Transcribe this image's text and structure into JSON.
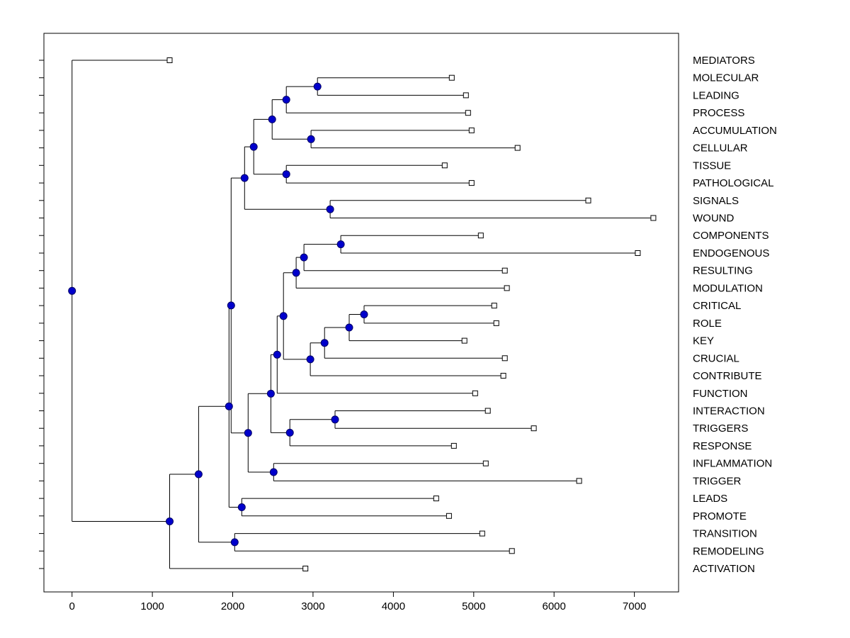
{
  "figure": {
    "background": "#ffffff",
    "title": ""
  },
  "chart_data": {
    "type": "tree",
    "subtype": "phylogenetic-dendrogram",
    "orientation": "horizontal, leaves on right",
    "title": "",
    "xlabel": "",
    "ylabel": "",
    "x_ticks": [
      0,
      1000,
      2000,
      3000,
      4000,
      5000,
      6000,
      7000
    ],
    "x_range": [
      -350,
      7550
    ],
    "grid": false,
    "colors": {
      "branch": "#000000",
      "node_fill": "#0000CC",
      "node_edge": "#000066",
      "leaf_fill": "#FFFFFF",
      "leaf_edge": "#000000",
      "text": "#000000",
      "axis": "#000000"
    },
    "leaves": [
      {
        "id": "L0",
        "label": "MEDIATORS",
        "value": 1215
      },
      {
        "id": "L1",
        "label": "MOLECULAR",
        "value": 4727
      },
      {
        "id": "L2",
        "label": "LEADING",
        "value": 4903
      },
      {
        "id": "L3",
        "label": "PROCESS",
        "value": 4930
      },
      {
        "id": "L4",
        "label": "ACCUMULATION",
        "value": 4974
      },
      {
        "id": "L5",
        "label": "CELLULAR",
        "value": 5546
      },
      {
        "id": "L6",
        "label": "TISSUE",
        "value": 4639
      },
      {
        "id": "L7",
        "label": "PATHOLOGICAL",
        "value": 4974
      },
      {
        "id": "L8",
        "label": "SIGNALS",
        "value": 6426
      },
      {
        "id": "L9",
        "label": "WOUND",
        "value": 7236
      },
      {
        "id": "L10",
        "label": "COMPONENTS",
        "value": 5088
      },
      {
        "id": "L11",
        "label": "ENDOGENOUS",
        "value": 7042
      },
      {
        "id": "L12",
        "label": "RESULTING",
        "value": 5387
      },
      {
        "id": "L13",
        "label": "MODULATION",
        "value": 5413
      },
      {
        "id": "L14",
        "label": "CRITICAL",
        "value": 5255
      },
      {
        "id": "L15",
        "label": "ROLE",
        "value": 5281
      },
      {
        "id": "L16",
        "label": "KEY",
        "value": 4885
      },
      {
        "id": "L17",
        "label": "CRUCIAL",
        "value": 5387
      },
      {
        "id": "L18",
        "label": "CONTRIBUTE",
        "value": 5369
      },
      {
        "id": "L19",
        "label": "FUNCTION",
        "value": 5018
      },
      {
        "id": "L20",
        "label": "INTERACTION",
        "value": 5176
      },
      {
        "id": "L21",
        "label": "TRIGGERS",
        "value": 5748
      },
      {
        "id": "L22",
        "label": "RESPONSE",
        "value": 4753
      },
      {
        "id": "L23",
        "label": "INFLAMMATION",
        "value": 5150
      },
      {
        "id": "L24",
        "label": "TRIGGER",
        "value": 6312
      },
      {
        "id": "L25",
        "label": "LEADS",
        "value": 4533
      },
      {
        "id": "L26",
        "label": "PROMOTE",
        "value": 4692
      },
      {
        "id": "L27",
        "label": "TRANSITION",
        "value": 5106
      },
      {
        "id": "L28",
        "label": "REMODELING",
        "value": 5475
      },
      {
        "id": "L29",
        "label": "ACTIVATION",
        "value": 2905
      }
    ],
    "nodes": [
      {
        "id": "n1",
        "children": [
          "L1",
          "L2"
        ],
        "value": 3055
      },
      {
        "id": "n2",
        "children": [
          "n1",
          "L3"
        ],
        "value": 2667
      },
      {
        "id": "n3",
        "children": [
          "L4",
          "L5"
        ],
        "value": 2975
      },
      {
        "id": "n4",
        "children": [
          "n2",
          "n3"
        ],
        "value": 2491
      },
      {
        "id": "n5",
        "children": [
          "L6",
          "L7"
        ],
        "value": 2667
      },
      {
        "id": "n6",
        "children": [
          "n4",
          "n5"
        ],
        "value": 2262
      },
      {
        "id": "n7",
        "children": [
          "L8",
          "L9"
        ],
        "value": 3213
      },
      {
        "id": "n8",
        "children": [
          "n6",
          "n7"
        ],
        "value": 2148
      },
      {
        "id": "n9",
        "children": [
          "L10",
          "L11"
        ],
        "value": 3345
      },
      {
        "id": "n10",
        "children": [
          "n9",
          "L12"
        ],
        "value": 2887
      },
      {
        "id": "n11",
        "children": [
          "n10",
          "L13"
        ],
        "value": 2790
      },
      {
        "id": "n12",
        "children": [
          "L14",
          "L15"
        ],
        "value": 3635
      },
      {
        "id": "n13",
        "children": [
          "n12",
          "L16"
        ],
        "value": 3450
      },
      {
        "id": "n14",
        "children": [
          "n13",
          "L17"
        ],
        "value": 3143
      },
      {
        "id": "n15",
        "children": [
          "n14",
          "L18"
        ],
        "value": 2966
      },
      {
        "id": "n16",
        "children": [
          "n11",
          "n15"
        ],
        "value": 2632
      },
      {
        "id": "n17",
        "children": [
          "n16",
          "L19"
        ],
        "value": 2553
      },
      {
        "id": "n18",
        "children": [
          "L20",
          "L21"
        ],
        "value": 3274
      },
      {
        "id": "n19",
        "children": [
          "n18",
          "L22"
        ],
        "value": 2711
      },
      {
        "id": "n20",
        "children": [
          "n17",
          "n19"
        ],
        "value": 2475
      },
      {
        "id": "n21",
        "children": [
          "L23",
          "L24"
        ],
        "value": 2509
      },
      {
        "id": "n22",
        "children": [
          "n20",
          "n21"
        ],
        "value": 2192
      },
      {
        "id": "n23",
        "children": [
          "n8",
          "n22"
        ],
        "value": 1980
      },
      {
        "id": "n24",
        "children": [
          "L25",
          "L26"
        ],
        "value": 2113
      },
      {
        "id": "n25",
        "children": [
          "n23",
          "n24"
        ],
        "value": 1954
      },
      {
        "id": "n26",
        "children": [
          "L27",
          "L28"
        ],
        "value": 2024
      },
      {
        "id": "n27",
        "children": [
          "n25",
          "n26"
        ],
        "value": 1576
      },
      {
        "id": "n28",
        "children": [
          "n27",
          "L29"
        ],
        "value": 1215
      },
      {
        "id": "n29",
        "children": [
          "L0",
          "n28"
        ],
        "value": 0
      }
    ],
    "root": "n29"
  }
}
